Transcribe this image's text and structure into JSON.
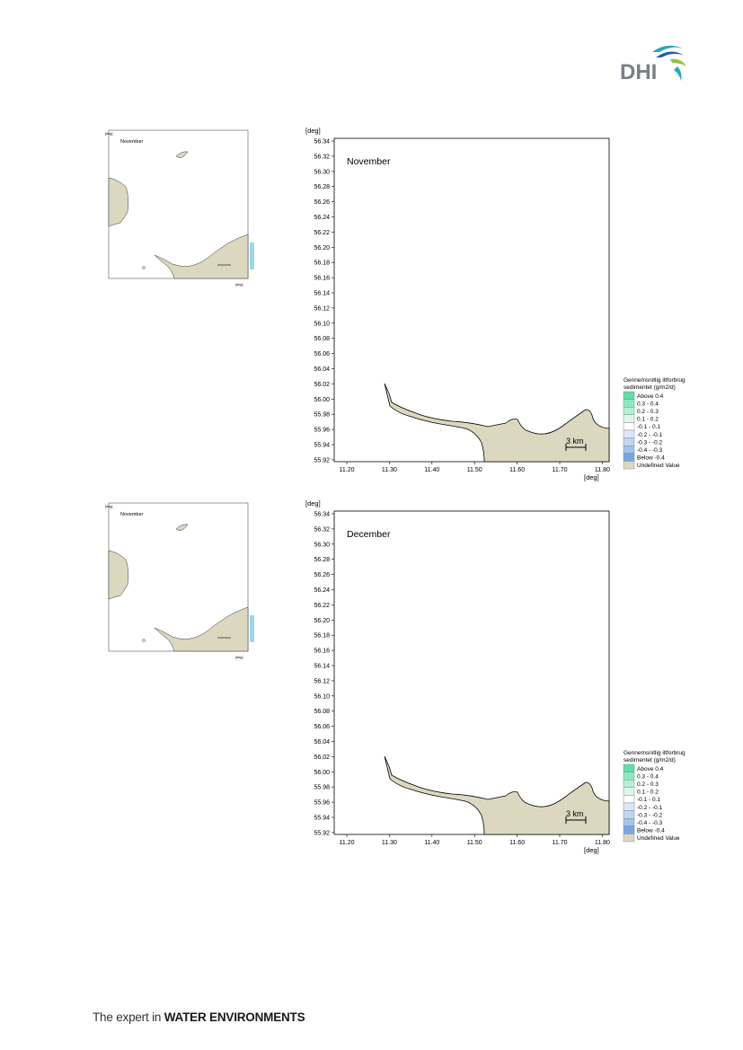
{
  "brand": {
    "logo_text": "DHI",
    "tagline_prefix": "The expert in ",
    "tagline_bold": "WATER ENVIRONMENTS",
    "colors": {
      "logo_text": "#7a8088",
      "wave_teal": "#2aa8b8",
      "wave_blue": "#1f5f9e",
      "wave_green": "#8cc63f"
    }
  },
  "colors": {
    "land": "#dcd8c0",
    "coast": "#000000"
  },
  "axis_unit": "[deg]",
  "y_ticks": [
    "56.34",
    "56.32",
    "56.30",
    "56.28",
    "56.26",
    "56.24",
    "56.22",
    "56.20",
    "56.18",
    "56.16",
    "56.14",
    "56.12",
    "56.10",
    "56.08",
    "56.06",
    "56.04",
    "56.02",
    "56.00",
    "55.98",
    "55.96",
    "55.94",
    "55.92"
  ],
  "x_ticks": [
    "11.20",
    "11.30",
    "11.40",
    "11.50",
    "11.60",
    "11.70",
    "11.80"
  ],
  "scale_bar": "3 km",
  "legend": {
    "title_line1": "Gennemsnitlig iltforbrug",
    "title_line2": "sedimentet (g/m2/d)",
    "items": [
      {
        "label": "Above  0.4",
        "color": "#5ee0a8"
      },
      {
        "label": "  0.3 -  0.4",
        "color": "#8ceac0"
      },
      {
        "label": "  0.2 -  0.3",
        "color": "#b4f0d4"
      },
      {
        "label": "  0.1 -  0.2",
        "color": "#dcf8ea"
      },
      {
        "label": " -0.1 -  0.1",
        "color": "#ffffff"
      },
      {
        "label": " -0.2 - -0.1",
        "color": "#dce8f8"
      },
      {
        "label": " -0.3 - -0.2",
        "color": "#c0d6f2"
      },
      {
        "label": " -0.4 - -0.3",
        "color": "#a4c4ec"
      },
      {
        "label": "Below -0.4",
        "color": "#74a8e4"
      },
      {
        "label": "Undefined Value",
        "color": "#dcd8c0"
      }
    ]
  },
  "panels": [
    {
      "month": "November",
      "thumb_month": "November"
    },
    {
      "month": "December",
      "thumb_month": "November"
    }
  ]
}
